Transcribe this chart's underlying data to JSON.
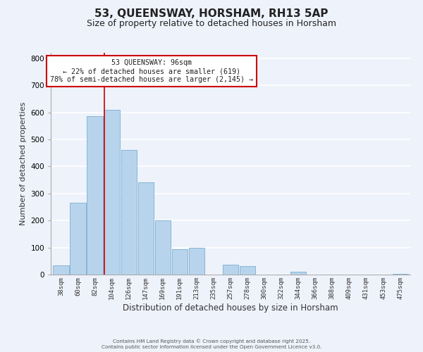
{
  "title": "53, QUEENSWAY, HORSHAM, RH13 5AP",
  "subtitle": "Size of property relative to detached houses in Horsham",
  "xlabel": "Distribution of detached houses by size in Horsham",
  "ylabel": "Number of detached properties",
  "categories": [
    "38sqm",
    "60sqm",
    "82sqm",
    "104sqm",
    "126sqm",
    "147sqm",
    "169sqm",
    "191sqm",
    "213sqm",
    "235sqm",
    "257sqm",
    "278sqm",
    "300sqm",
    "322sqm",
    "344sqm",
    "366sqm",
    "388sqm",
    "409sqm",
    "431sqm",
    "453sqm",
    "475sqm"
  ],
  "values": [
    35,
    265,
    585,
    610,
    460,
    340,
    200,
    93,
    100,
    0,
    37,
    30,
    0,
    0,
    11,
    0,
    0,
    0,
    0,
    0,
    2
  ],
  "bar_color": "#b8d4ec",
  "bar_edge_color": "#7aaed0",
  "vline_x": 2.55,
  "vline_color": "#cc0000",
  "annotation_title": "53 QUEENSWAY: 96sqm",
  "annotation_line1": "← 22% of detached houses are smaller (619)",
  "annotation_line2": "78% of semi-detached houses are larger (2,145) →",
  "annotation_box_color": "#ffffff",
  "annotation_box_edge": "#cc0000",
  "background_color": "#eef2fb",
  "grid_color": "#ffffff",
  "footer1": "Contains HM Land Registry data © Crown copyright and database right 2025.",
  "footer2": "Contains public sector information licensed under the Open Government Licence v3.0.",
  "ylim": [
    0,
    820
  ],
  "yticks": [
    0,
    100,
    200,
    300,
    400,
    500,
    600,
    700,
    800
  ],
  "title_fontsize": 11,
  "subtitle_fontsize": 9,
  "xlabel_fontsize": 8.5,
  "ylabel_fontsize": 8
}
